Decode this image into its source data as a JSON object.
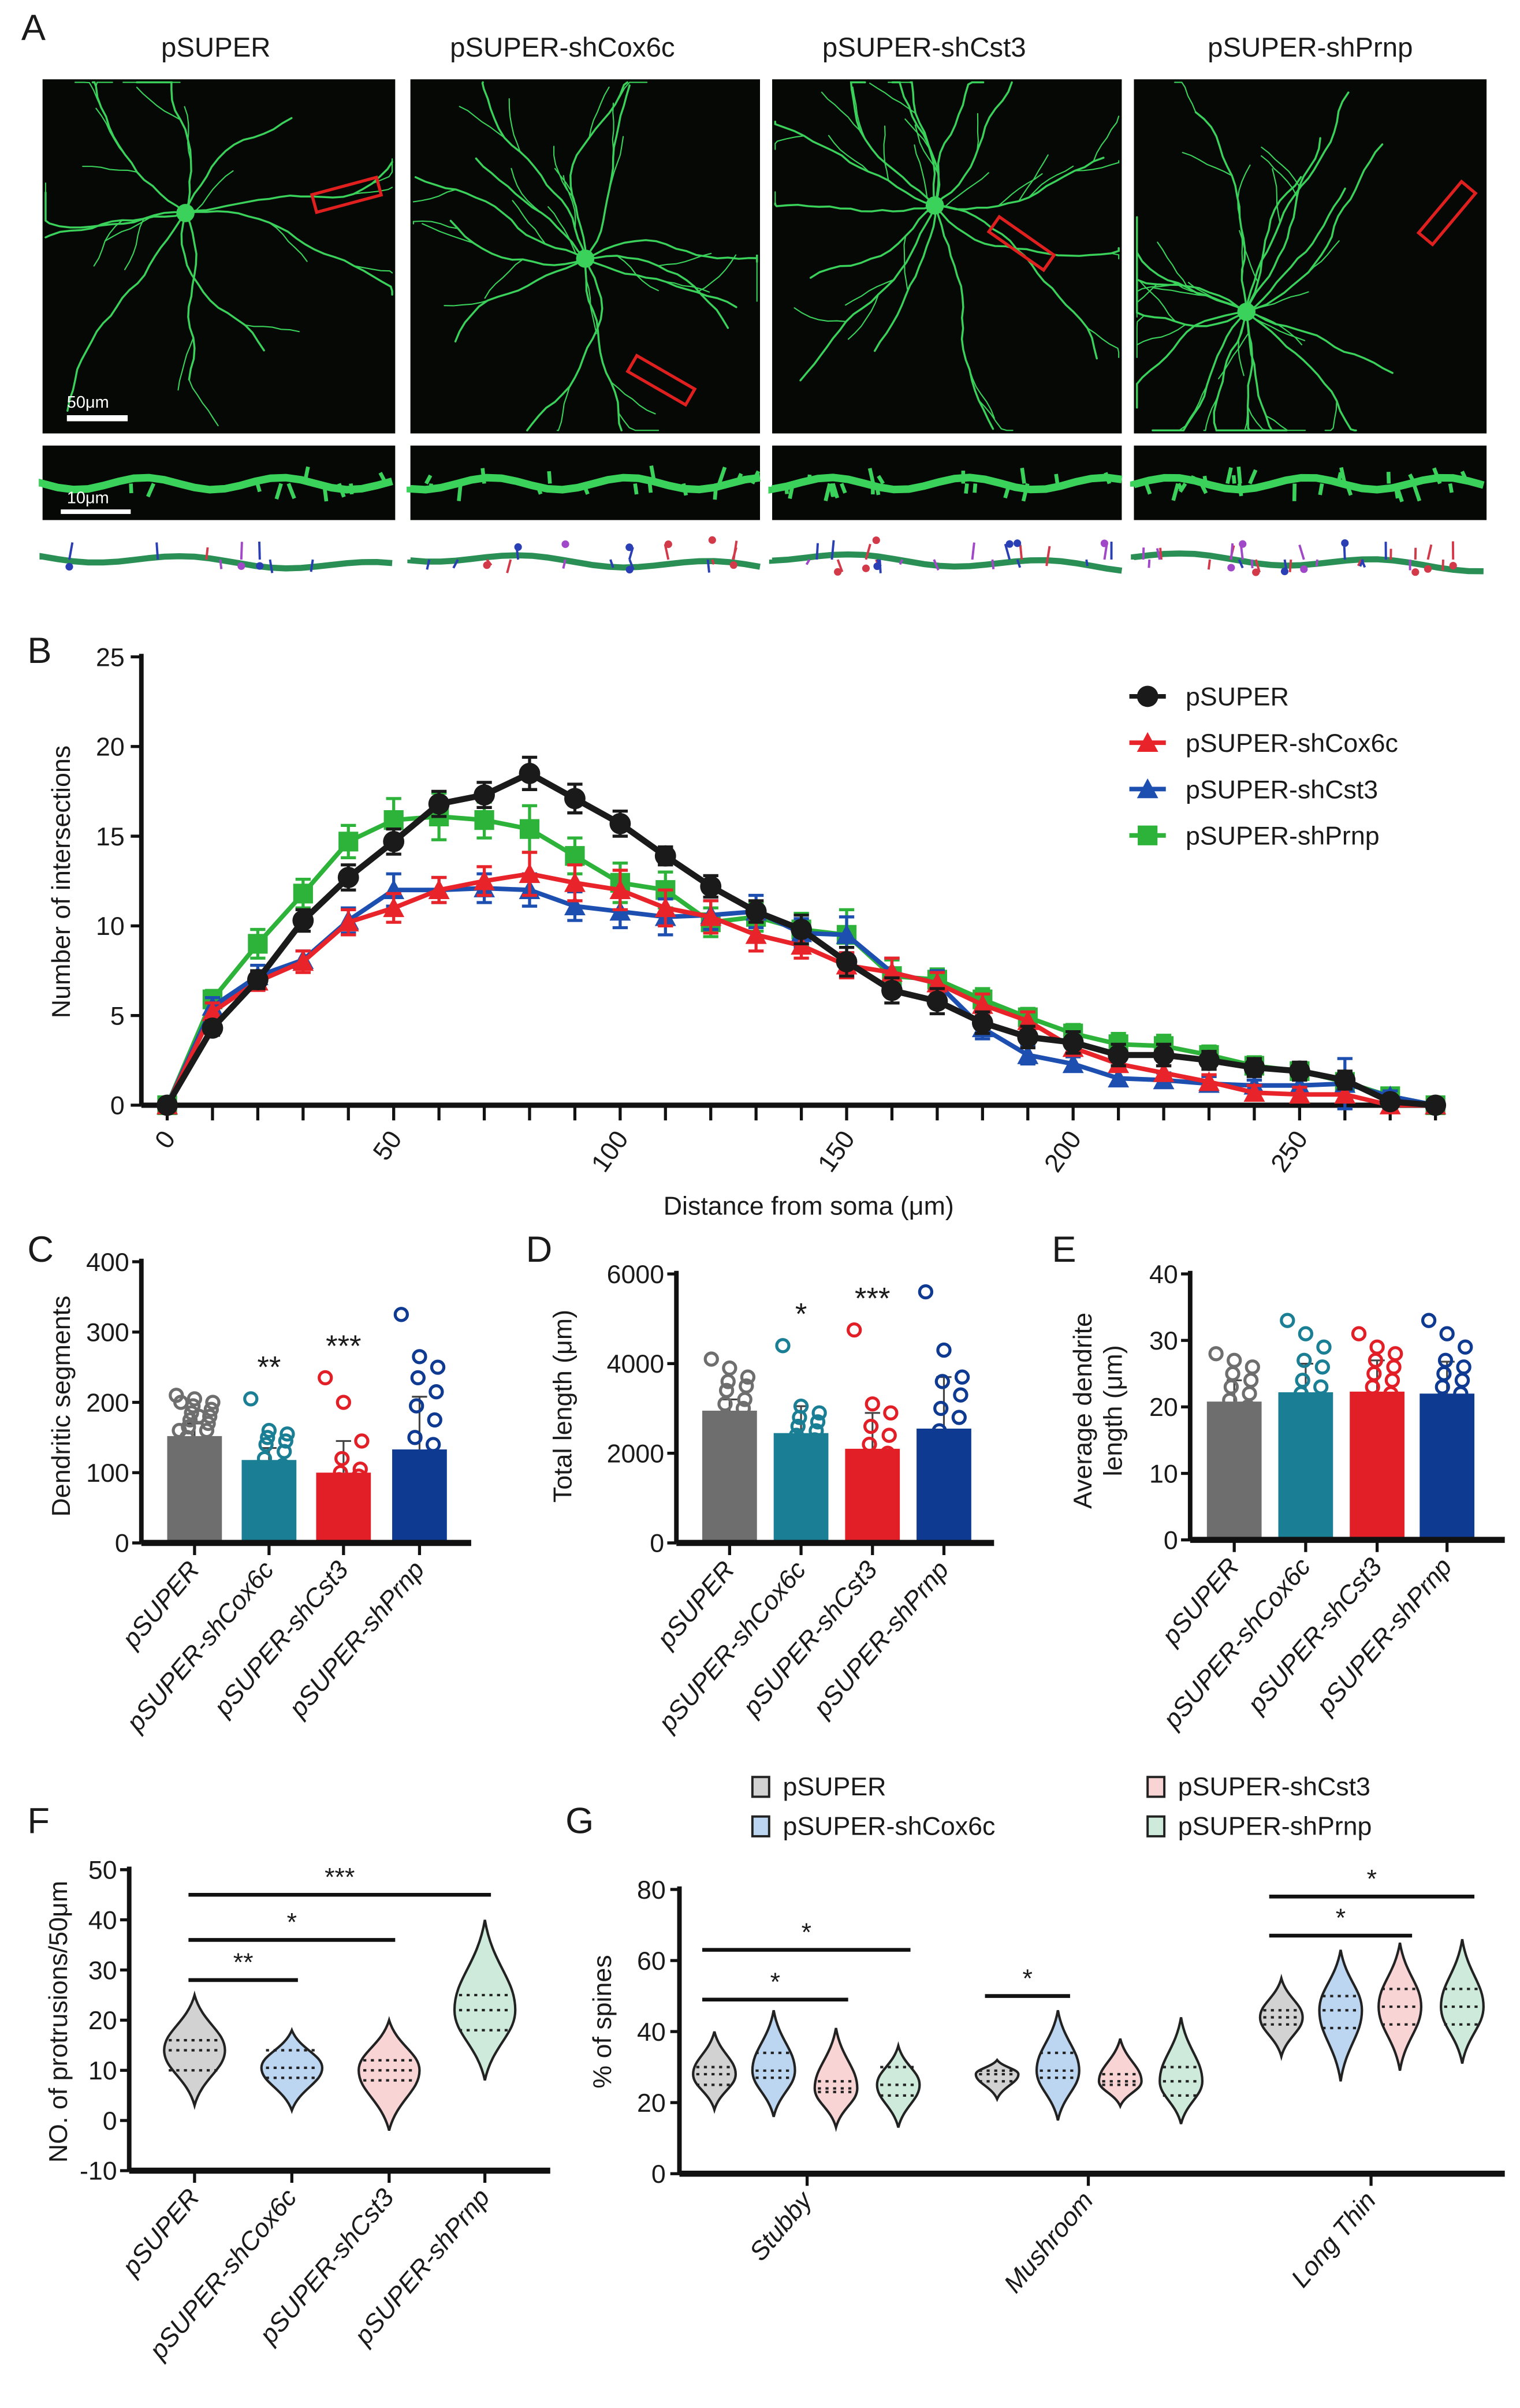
{
  "panel_labels": {
    "a": "A",
    "b": "B",
    "c": "C",
    "d": "D",
    "e": "E",
    "f": "F",
    "g": "G"
  },
  "panel_a": {
    "titles": [
      "pSUPER",
      "pSUPER-shCox6c",
      "pSUPER-shCst3",
      "pSUPER-shPrnp"
    ],
    "scale_bar_main": "50μm",
    "scale_bar_zoom": "10μm",
    "colors": {
      "neuron": "#3ad25a",
      "background": "#050805",
      "roi": "#e0201e"
    }
  },
  "chart_data": [
    {
      "panel": "B",
      "type": "line",
      "xlabel": "Distance from soma (μm)",
      "ylabel": "Number of intersections",
      "xlim": [
        0,
        280
      ],
      "ylim": [
        0,
        25
      ],
      "xticks": [
        0,
        50,
        100,
        150,
        200,
        250
      ],
      "yticks": [
        0,
        5,
        10,
        15,
        20,
        25
      ],
      "legend_position": "top-right",
      "x": [
        0,
        10,
        20,
        30,
        40,
        50,
        60,
        70,
        80,
        90,
        100,
        110,
        120,
        130,
        140,
        150,
        160,
        170,
        180,
        190,
        200,
        210,
        220,
        230,
        240,
        250,
        260,
        270,
        280
      ],
      "series": [
        {
          "name": "pSUPER-shPrnp",
          "color": "#2db33a",
          "marker": "square",
          "values": [
            0,
            5.9,
            9,
            11.8,
            14.7,
            15.9,
            16.1,
            15.9,
            15.4,
            13.9,
            12.4,
            12,
            10.2,
            10.5,
            9.8,
            9.5,
            7.2,
            7,
            5.9,
            4.9,
            4,
            3.4,
            3.3,
            2.8,
            2.2,
            1.9,
            1.3,
            0.5,
            0
          ],
          "errors": [
            0.3,
            0.5,
            0.8,
            0.8,
            0.9,
            1.2,
            1.3,
            1.0,
            1.3,
            1.0,
            1.1,
            1.0,
            0.8,
            0.8,
            0.9,
            1.4,
            0.9,
            0.6,
            0.6,
            0.5,
            0.5,
            0.6,
            0.6,
            0.5,
            0.5,
            0.4,
            0.4,
            0.3,
            0.2
          ]
        },
        {
          "name": "pSUPER-shCst3",
          "color": "#1d4fb0",
          "marker": "triangle",
          "values": [
            0,
            5.5,
            7.2,
            8.1,
            10.3,
            12,
            12,
            12.1,
            12,
            11.1,
            10.8,
            10.5,
            10.6,
            10.8,
            9.6,
            9.5,
            7.4,
            6.8,
            4.3,
            2.8,
            2.3,
            1.5,
            1.4,
            1.2,
            1.1,
            1.1,
            1.2,
            0.5,
            0
          ],
          "errors": [
            0.2,
            0.5,
            0.6,
            0.5,
            0.7,
            0.9,
            0.7,
            0.8,
            0.9,
            0.8,
            0.9,
            1.0,
            0.8,
            0.9,
            0.8,
            1.0,
            0.8,
            0.7,
            0.6,
            0.5,
            0.4,
            0.4,
            0.4,
            0.4,
            0.3,
            0.3,
            1.4,
            0.3,
            0.2
          ]
        },
        {
          "name": "pSUPER-shCox6c",
          "color": "#e8242a",
          "marker": "triangle",
          "values": [
            0,
            5.2,
            6.9,
            8,
            10.2,
            11,
            12,
            12.5,
            12.9,
            12.4,
            12,
            11,
            10.5,
            9.5,
            8.9,
            7.8,
            7.4,
            6.8,
            5.6,
            4.7,
            3.2,
            2.3,
            1.8,
            1.3,
            0.7,
            0.6,
            0.6,
            0,
            0
          ],
          "errors": [
            0.2,
            0.5,
            0.5,
            0.6,
            0.7,
            0.8,
            0.7,
            0.8,
            1.2,
            1.0,
            1.1,
            1.0,
            0.9,
            0.9,
            0.7,
            0.7,
            0.8,
            0.6,
            0.6,
            0.5,
            0.4,
            0.4,
            0.4,
            0.4,
            0.4,
            0.4,
            0.4,
            0.2,
            0.2
          ]
        },
        {
          "name": "pSUPER",
          "color": "#1a1a1a",
          "marker": "circle",
          "values": [
            0,
            4.3,
            7,
            10.3,
            12.7,
            14.7,
            16.8,
            17.3,
            18.5,
            17.1,
            15.7,
            13.9,
            12.2,
            10.8,
            9.8,
            8,
            6.4,
            5.8,
            4.6,
            3.8,
            3.5,
            2.8,
            2.8,
            2.5,
            2.1,
            1.9,
            1.4,
            0.2,
            0
          ],
          "errors": [
            0.2,
            0.4,
            0.5,
            0.6,
            0.7,
            0.7,
            0.7,
            0.7,
            0.9,
            0.8,
            0.7,
            0.5,
            0.6,
            0.6,
            0.8,
            0.8,
            0.7,
            0.7,
            0.6,
            0.6,
            0.6,
            0.6,
            0.6,
            0.5,
            0.5,
            0.5,
            0.5,
            0.3,
            0.2
          ]
        }
      ]
    },
    {
      "panel": "C",
      "type": "bar",
      "ylabel": "Dendritic segments",
      "ylim": [
        0,
        400
      ],
      "yticks": [
        0,
        100,
        200,
        300,
        400
      ],
      "categories": [
        "pSUPER",
        "pSUPER-shCox6c",
        "pSUPER-shCst3",
        "pSUPER-shPrnp"
      ],
      "values": [
        152,
        118,
        100,
        133
      ],
      "sem_top": [
        170,
        135,
        145,
        208
      ],
      "significance": [
        "",
        "**",
        "***",
        ""
      ],
      "colors": [
        "#6e6e6e",
        "#1a7f94",
        "#e21f26",
        "#0e3a92"
      ],
      "points": [
        [
          210,
          205,
          200,
          195,
          190,
          185,
          180,
          175,
          170,
          165,
          160,
          150,
          140,
          130,
          120,
          110,
          100,
          90,
          85,
          200,
          180,
          160
        ],
        [
          205,
          160,
          155,
          150,
          145,
          140,
          130,
          120,
          110,
          100,
          95,
          90,
          85,
          80,
          75
        ],
        [
          235,
          200,
          145,
          120,
          105,
          100,
          95,
          90,
          80,
          70,
          65,
          60,
          55
        ],
        [
          325,
          265,
          250,
          235,
          215,
          195,
          175,
          150,
          140,
          120,
          100,
          80,
          65,
          50,
          40
        ]
      ]
    },
    {
      "panel": "D",
      "type": "bar",
      "ylabel": "Total length (μm)",
      "ylim": [
        0,
        6000
      ],
      "yticks": [
        0,
        2000,
        4000,
        6000
      ],
      "categories": [
        "pSUPER",
        "pSUPER-shCox6c",
        "pSUPER-shCst3",
        "pSUPER-shPrnp"
      ],
      "values": [
        2950,
        2450,
        2100,
        2550
      ],
      "sem_top": [
        3200,
        3050,
        2900,
        3700
      ],
      "significance": [
        "",
        "*",
        "***",
        ""
      ],
      "colors": [
        "#6e6e6e",
        "#1a7f94",
        "#e21f26",
        "#0e3a92"
      ],
      "points": [
        [
          4100,
          3900,
          3700,
          3600,
          3500,
          3400,
          3200,
          3100,
          3000,
          2800,
          2700,
          2600,
          2400,
          2300,
          2200,
          2000
        ],
        [
          4400,
          3050,
          2900,
          2800,
          2700,
          2600,
          2500,
          2400,
          2300,
          2200,
          2000,
          1900
        ],
        [
          4750,
          3100,
          2900,
          2600,
          2400,
          2200,
          2000,
          1800,
          1600,
          1400,
          1200
        ],
        [
          5600,
          4300,
          3700,
          3600,
          3300,
          3000,
          2800,
          2500,
          2300,
          2000,
          1800,
          1600,
          1400,
          1200,
          1100
        ]
      ]
    },
    {
      "panel": "E",
      "type": "bar",
      "ylabel": [
        "Average dendrite",
        "length (μm)"
      ],
      "ylim": [
        0,
        40
      ],
      "yticks": [
        0,
        10,
        20,
        30,
        40
      ],
      "categories": [
        "pSUPER",
        "pSUPER-shCox6c",
        "pSUPER-shCst3",
        "pSUPER-shPrnp"
      ],
      "values": [
        20.8,
        22.2,
        22.3,
        22.0
      ],
      "sem_top": [
        24,
        26.5,
        27,
        26.8
      ],
      "significance": [
        "",
        "",
        "",
        ""
      ],
      "colors": [
        "#6e6e6e",
        "#1a7f94",
        "#e21f26",
        "#0e3a92"
      ],
      "points": [
        [
          28,
          27,
          26,
          25,
          24,
          23,
          22,
          21,
          20,
          19,
          18,
          17,
          16
        ],
        [
          33,
          31,
          29,
          27,
          26,
          24,
          23,
          22,
          21,
          20,
          19,
          18,
          17,
          15
        ],
        [
          31,
          29,
          28,
          27,
          26,
          25,
          24,
          23,
          22,
          21,
          20,
          19,
          18,
          17,
          15
        ],
        [
          33,
          31,
          29,
          27,
          26,
          25,
          24,
          23,
          22,
          21,
          20,
          18,
          16,
          14
        ]
      ]
    },
    {
      "panel": "F",
      "type": "violin",
      "ylabel": "NO. of protrusions/50μm",
      "ylim": [
        -10,
        50
      ],
      "yticks": [
        -10,
        0,
        10,
        20,
        30,
        40,
        50
      ],
      "categories": [
        "pSUPER",
        "pSUPER-shCox6c",
        "pSUPER-shCst3",
        "pSUPER-shPrnp"
      ],
      "colors": [
        "#d2d2d2",
        "#bcd5f0",
        "#f8d4d4",
        "#cdeadb"
      ],
      "min": [
        3,
        2,
        -2,
        8
      ],
      "max": [
        25,
        18,
        20,
        40
      ],
      "median": [
        14,
        10.5,
        10,
        22
      ],
      "q1": [
        10,
        8.5,
        8,
        18
      ],
      "q3": [
        16,
        14,
        12,
        25
      ],
      "significance": [
        {
          "from": 0,
          "to": 1,
          "y": 28,
          "label": "**"
        },
        {
          "from": 0,
          "to": 2,
          "y": 36,
          "label": "*"
        },
        {
          "from": 0,
          "to": 3,
          "y": 45,
          "label": "***"
        }
      ]
    },
    {
      "panel": "G",
      "type": "violin",
      "ylabel": "% of spines",
      "ylim": [
        0,
        80
      ],
      "yticks": [
        0,
        20,
        40,
        60,
        80
      ],
      "groups": [
        "Stubby",
        "Mushroom",
        "Long Thin"
      ],
      "legend": [
        "pSUPER",
        "pSUPER-shCox6c",
        "pSUPER-shCst3",
        "pSUPER-shPrnp"
      ],
      "colors": [
        "#d2d2d2",
        "#bcd5f0",
        "#f8d4d4",
        "#cdeadb"
      ],
      "min": [
        [
          18,
          16,
          13,
          13
        ],
        [
          21,
          15,
          19,
          14
        ],
        [
          33,
          26,
          29,
          31
        ]
      ],
      "max": [
        [
          40,
          46,
          41,
          36
        ],
        [
          32,
          46,
          38,
          44
        ],
        [
          55,
          63,
          65,
          66
        ]
      ],
      "median": [
        [
          28,
          29,
          24,
          25
        ],
        [
          28,
          29,
          26,
          26
        ],
        [
          44,
          46,
          47,
          47
        ]
      ],
      "q1": [
        [
          25,
          27,
          23,
          22
        ],
        [
          26,
          27,
          25,
          22
        ],
        [
          42,
          41,
          42,
          42
        ]
      ],
      "q3": [
        [
          30,
          34,
          26,
          30
        ],
        [
          29,
          34,
          28,
          30
        ],
        [
          46,
          50,
          52,
          52
        ]
      ],
      "significance": [
        {
          "group": 0,
          "from": 0,
          "to": 2,
          "y": 49,
          "label": "*"
        },
        {
          "group": 0,
          "from": 0,
          "to": 3,
          "y": 63,
          "label": "*"
        },
        {
          "group": 1,
          "from": 0,
          "to": 1,
          "y": 50,
          "label": "*"
        },
        {
          "group": 2,
          "from": 0,
          "to": 2,
          "y": 67,
          "label": "*"
        },
        {
          "group": 2,
          "from": 0,
          "to": 3,
          "y": 78,
          "label": "*"
        }
      ]
    }
  ]
}
